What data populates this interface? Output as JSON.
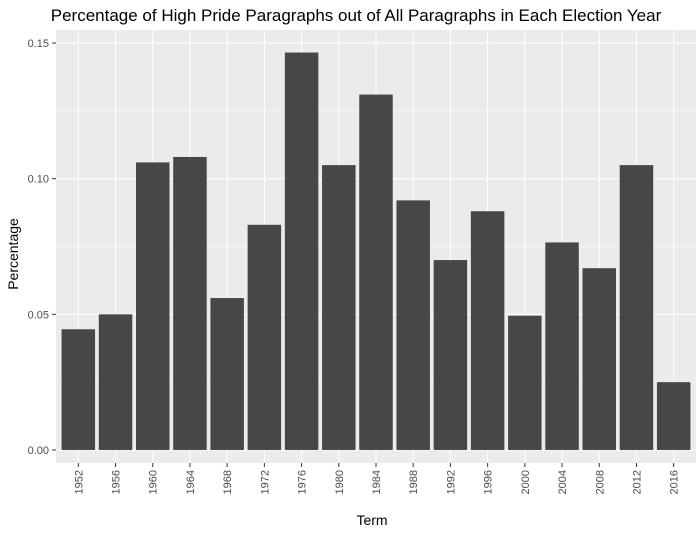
{
  "colors": {
    "panel_background": "#ebebeb",
    "grid_major": "#ffffff",
    "bar_fill": "#474747",
    "tick_color": "#333333",
    "tick_label": "#4d4d4d"
  },
  "chart_data": {
    "type": "bar",
    "title": "Percentage of High Pride Paragraphs out of All Paragraphs in Each Election Year",
    "xlabel": "Term",
    "ylabel": "Percentage",
    "categories": [
      "1952",
      "1956",
      "1960",
      "1964",
      "1968",
      "1972",
      "1976",
      "1980",
      "1984",
      "1988",
      "1992",
      "1996",
      "2000",
      "2004",
      "2008",
      "2012",
      "2016"
    ],
    "values": [
      0.0445,
      0.05,
      0.106,
      0.108,
      0.056,
      0.083,
      0.1465,
      0.105,
      0.131,
      0.092,
      0.07,
      0.088,
      0.0495,
      0.0765,
      0.067,
      0.105,
      0.025
    ],
    "ylim": [
      -0.0048,
      0.1548
    ],
    "yticks": [
      0,
      0.05,
      0.1,
      0.15
    ],
    "ytick_labels": [
      "0.00",
      "0.05",
      "0.10",
      "0.15"
    ],
    "grid": true,
    "legend": "none"
  }
}
